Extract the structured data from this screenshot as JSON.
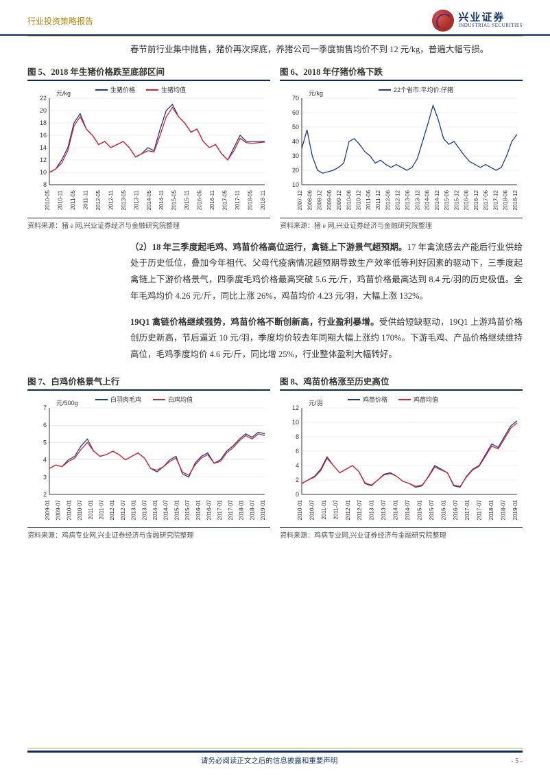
{
  "header": {
    "title": "行业投资策略报告",
    "logo_cn": "兴业证券",
    "logo_en": "INDUSTRIAL SECURITIES"
  },
  "intro": "春节前行业集中抛售，猪价再次探底，养猪公司一季度销售均价不到 12 元/kg，普遍大幅亏损。",
  "para1_bold": "（2）18 年三季度起毛鸡、鸡苗价格高位运行，禽链上下游景气超预期。",
  "para1": "17 年禽流感去产能后行业供给处于历史低位，叠加今年祖代、父母代疫病情况超预期导致生产效率低等利好因素的驱动下，三季度起禽链上下游价格景气，四季度毛鸡价格最高突破 5.6 元/斤，鸡苗价格最高达到 8.4 元/羽的历史极值。全年毛鸡均价 4.26 元/斤，同比上涨 26%，鸡苗均价 4.23 元/羽，大幅上涨 132%。",
  "para2_bold": "19Q1 禽链价格继续强势，鸡苗价格不断创新高，行业盈利暴增。",
  "para2": "受供给短缺驱动，19Q1 上游鸡苗价格创历史新高，节后逼近 10 元/羽，季度均价较去年同期大幅上涨约 170%。下游毛鸡、产品价格继续维持高位，毛鸡季度均价 4.6 元/斤，同比增 25%，行业整体盈利大幅转好。",
  "chart5": {
    "title": "图 5、2018 年生猪价格跌至底部区间",
    "source": "资料来源：猪 e 网,兴业证券经济与金融研究院整理",
    "legend": [
      "生猪价格",
      "生猪均值"
    ],
    "y_unit": "元/kg",
    "ylim": [
      8,
      22
    ],
    "ytick_step": 2,
    "xlabels": [
      "2010-05",
      "2010-11",
      "2011-05",
      "2011-11",
      "2012-05",
      "2012-11",
      "2013-05",
      "2013-11",
      "2014-05",
      "2014-11",
      "2015-05",
      "2015-11",
      "2016-05",
      "2016-11",
      "2017-05",
      "2017-11",
      "2018-05",
      "2018-11"
    ],
    "series1_color": "#1a3a8c",
    "series2_color": "#d6232a",
    "series1": [
      10,
      10.5,
      12,
      14,
      18,
      19.5,
      17,
      16,
      14.5,
      15,
      14,
      14.5,
      15,
      14,
      12.5,
      13,
      14,
      13.5,
      17,
      20,
      21,
      19,
      18,
      16.5,
      17,
      15,
      14,
      14.5,
      13,
      12,
      14,
      16,
      15,
      15,
      15,
      15
    ],
    "series2": [
      10,
      10.5,
      11.5,
      13.5,
      17.5,
      19,
      17,
      16,
      14.5,
      15,
      14,
      14.5,
      15,
      14,
      12.5,
      13,
      13.5,
      13.3,
      16,
      19,
      20.5,
      19,
      18,
      16.5,
      17,
      15,
      14,
      14.5,
      13,
      12,
      13.5,
      15.5,
      14.8,
      14.7,
      14.8,
      14.9
    ]
  },
  "chart6": {
    "title": "图 6、2018 年仔猪价格下跌",
    "source": "资料来源：猪 e 网,兴业证券经济与金融研究院整理",
    "legend": [
      "22个省市:平均价:仔猪"
    ],
    "y_unit": "元/kg",
    "ylim": [
      10,
      70
    ],
    "ytick_step": 10,
    "xlabels": [
      "2007-12",
      "2008-06",
      "2008-12",
      "2009-06",
      "2009-12",
      "2010-06",
      "2010-12",
      "2011-06",
      "2011-12",
      "2012-06",
      "2012-12",
      "2013-06",
      "2013-12",
      "2014-06",
      "2014-12",
      "2015-06",
      "2015-12",
      "2016-06",
      "2016-12",
      "2017-06",
      "2017-12",
      "2018-06",
      "2018-12"
    ],
    "series1_color": "#1a3a8c",
    "series1": [
      35,
      48,
      30,
      20,
      18,
      19,
      20,
      22,
      25,
      40,
      42,
      38,
      33,
      30,
      25,
      27,
      24,
      22,
      24,
      22,
      20,
      22,
      28,
      40,
      52,
      65,
      55,
      42,
      38,
      40,
      35,
      30,
      26,
      24,
      22,
      24,
      22,
      20,
      22,
      30,
      40,
      45
    ]
  },
  "chart7": {
    "title": "图 7、白鸡价格景气上行",
    "source": "资料来源：鸡病专业网,兴业证券经济与金融研究院整理",
    "legend": [
      "白羽肉毛鸡",
      "白鸡均值"
    ],
    "y_unit": "元/500g",
    "ylim": [
      2,
      7
    ],
    "ytick_step": 1,
    "xlabels": [
      "2009-01",
      "2009-07",
      "2010-01",
      "2010-07",
      "2011-01",
      "2011-07",
      "2012-01",
      "2012-07",
      "2013-01",
      "2013-07",
      "2014-01",
      "2014-07",
      "2015-01",
      "2015-07",
      "2016-01",
      "2016-07",
      "2017-01",
      "2017-07",
      "2018-01",
      "2018-07",
      "2019-01"
    ],
    "series1_color": "#1a3a8c",
    "series2_color": "#d6232a",
    "series1": [
      3.5,
      3.7,
      3.6,
      4.0,
      4.2,
      4.8,
      5.2,
      4.5,
      4.2,
      4.3,
      4.5,
      4.3,
      4.0,
      4.2,
      4.4,
      4.1,
      3.5,
      3.3,
      3.6,
      4.0,
      4.2,
      3.2,
      3.0,
      3.8,
      4.2,
      4.4,
      3.8,
      4.0,
      4.5,
      4.8,
      5.2,
      5.5,
      5.3,
      5.6,
      5.5
    ],
    "series2": [
      3.5,
      3.7,
      3.6,
      3.9,
      4.1,
      4.6,
      5.0,
      4.5,
      4.2,
      4.3,
      4.5,
      4.3,
      4.0,
      4.2,
      4.4,
      4.1,
      3.5,
      3.4,
      3.6,
      3.9,
      4.1,
      3.3,
      3.1,
      3.7,
      4.1,
      4.3,
      3.8,
      3.9,
      4.4,
      4.7,
      5.1,
      5.4,
      5.2,
      5.5,
      5.4
    ]
  },
  "chart8": {
    "title": "图 8、鸡苗价格涨至历史高位",
    "source": "资料来源：鸡病专业网,兴业证券经济与金融研究院整理",
    "legend": [
      "鸡苗价格",
      "鸡苗均值"
    ],
    "y_unit": "元/羽",
    "ylim": [
      0,
      12
    ],
    "ytick_step": 2,
    "xlabels": [
      "2010-01",
      "2010-07",
      "2011-01",
      "2011-07",
      "2012-01",
      "2012-07",
      "2013-01",
      "2013-07",
      "2014-01",
      "2014-07",
      "2015-01",
      "2015-07",
      "2016-01",
      "2016-07",
      "2017-01",
      "2017-07",
      "2018-01",
      "2018-07",
      "2019-01"
    ],
    "series1_color": "#1a3a8c",
    "series2_color": "#d6232a",
    "series1": [
      1.5,
      2.0,
      2.5,
      3.5,
      5.2,
      4.0,
      3.0,
      3.5,
      4.0,
      3.2,
      1.5,
      1.2,
      2.0,
      2.8,
      3.0,
      2.5,
      1.8,
      1.5,
      1.0,
      1.2,
      2.5,
      4.0,
      3.5,
      3.0,
      1.2,
      1.0,
      2.5,
      3.5,
      4.0,
      5.5,
      7.0,
      6.5,
      8.0,
      9.5,
      10.2
    ],
    "series2": [
      1.5,
      2.0,
      2.4,
      3.3,
      5.0,
      4.0,
      3.0,
      3.5,
      4.0,
      3.2,
      1.6,
      1.3,
      2.0,
      2.7,
      2.9,
      2.5,
      1.8,
      1.5,
      1.1,
      1.3,
      2.4,
      3.8,
      3.4,
      3.0,
      1.3,
      1.1,
      2.4,
      3.4,
      3.9,
      5.3,
      6.7,
      6.3,
      7.7,
      9.2,
      9.9
    ]
  },
  "footer": {
    "text": "请务必阅读正文之后的信息披露和重要声明",
    "page": "- 5 -"
  }
}
